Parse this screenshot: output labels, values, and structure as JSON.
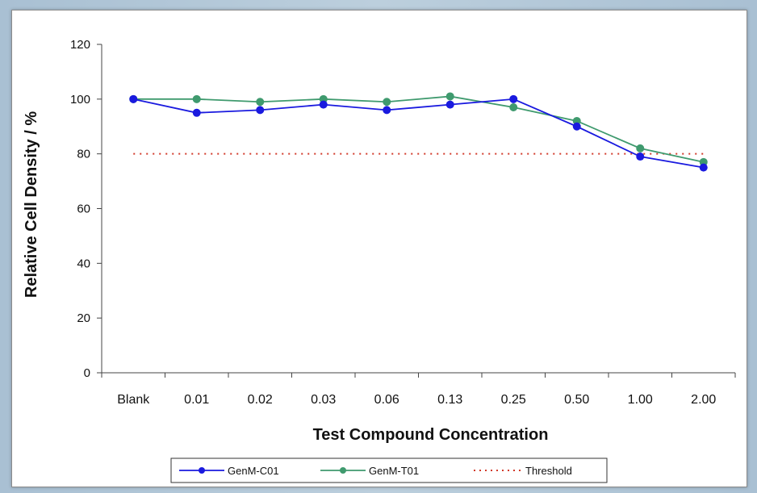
{
  "chart_data": {
    "type": "line",
    "title": "",
    "xlabel": "Test Compound Concentration",
    "ylabel": "Relative Cell Density  / %",
    "categories": [
      "Blank",
      "0.01",
      "0.02",
      "0.03",
      "0.06",
      "0.13",
      "0.25",
      "0.50",
      "1.00",
      "2.00"
    ],
    "ylim": [
      0,
      120
    ],
    "yticks": [
      0,
      20,
      40,
      60,
      80,
      100,
      120
    ],
    "grid": false,
    "legend_position": "bottom",
    "series": [
      {
        "name": "GenM-C01",
        "color": "#1a1adf",
        "marker": "circle",
        "line_style": "solid",
        "values": [
          100,
          95,
          96,
          98,
          96,
          98,
          100,
          90,
          79,
          75
        ]
      },
      {
        "name": "GenM-T01",
        "color": "#3f9a6e",
        "marker": "circle",
        "line_style": "solid",
        "values": [
          100,
          100,
          99,
          100,
          99,
          101,
          97,
          92,
          82,
          77
        ]
      },
      {
        "name": "Threshold",
        "color": "#d23a2a",
        "marker": "none",
        "line_style": "dotted",
        "values": [
          80,
          80,
          80,
          80,
          80,
          80,
          80,
          80,
          80,
          80
        ]
      }
    ]
  }
}
